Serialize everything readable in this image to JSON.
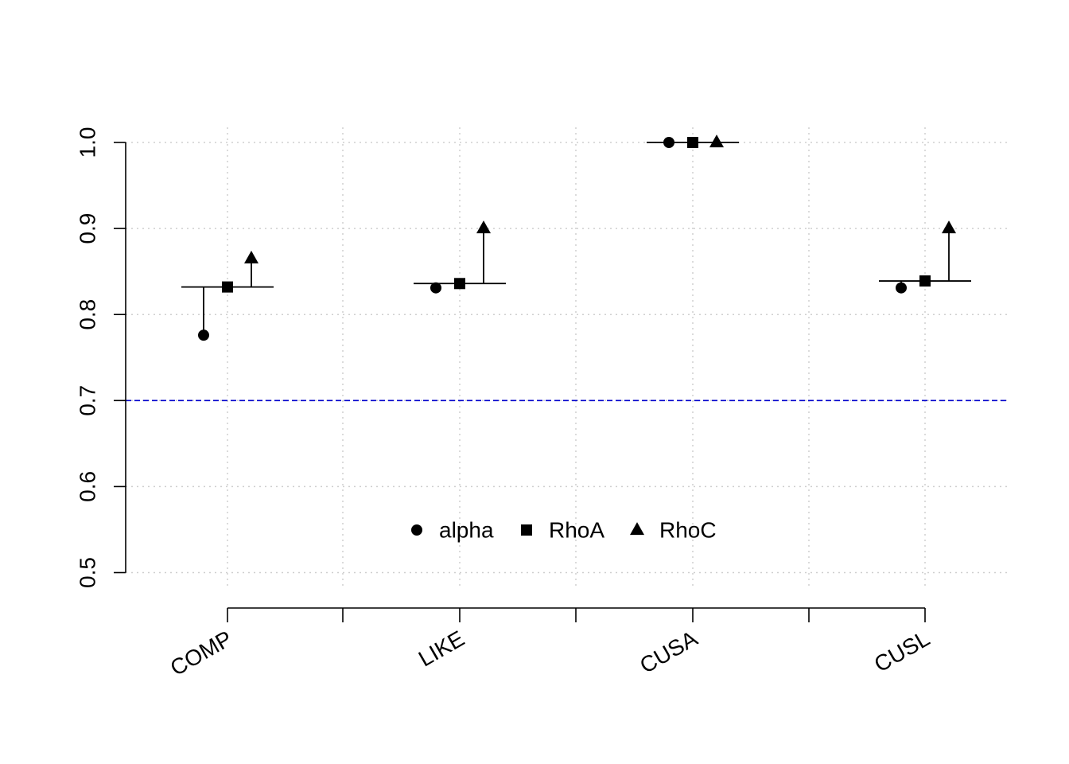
{
  "chart_data": {
    "type": "scatter",
    "categories": [
      "COMP",
      "LIKE",
      "CUSA",
      "CUSL"
    ],
    "series": [
      {
        "name": "alpha",
        "marker": "circle",
        "values": [
          0.776,
          0.831,
          1.0,
          0.831
        ]
      },
      {
        "name": "RhoA",
        "marker": "square",
        "values": [
          0.832,
          0.836,
          1.0,
          0.839
        ]
      },
      {
        "name": "RhoC",
        "marker": "triangle",
        "values": [
          0.865,
          0.9,
          1.0,
          0.9
        ]
      }
    ],
    "ylim": [
      0.5,
      1.0
    ],
    "yticks": [
      "0.5",
      "0.6",
      "0.7",
      "0.8",
      "0.9",
      "1.0"
    ],
    "reference_line": {
      "value": 0.7,
      "color": "#0000cc",
      "style": "dashed"
    },
    "grid": true,
    "legend_position": "bottom-center",
    "title": "",
    "xlabel": "",
    "ylabel": ""
  }
}
